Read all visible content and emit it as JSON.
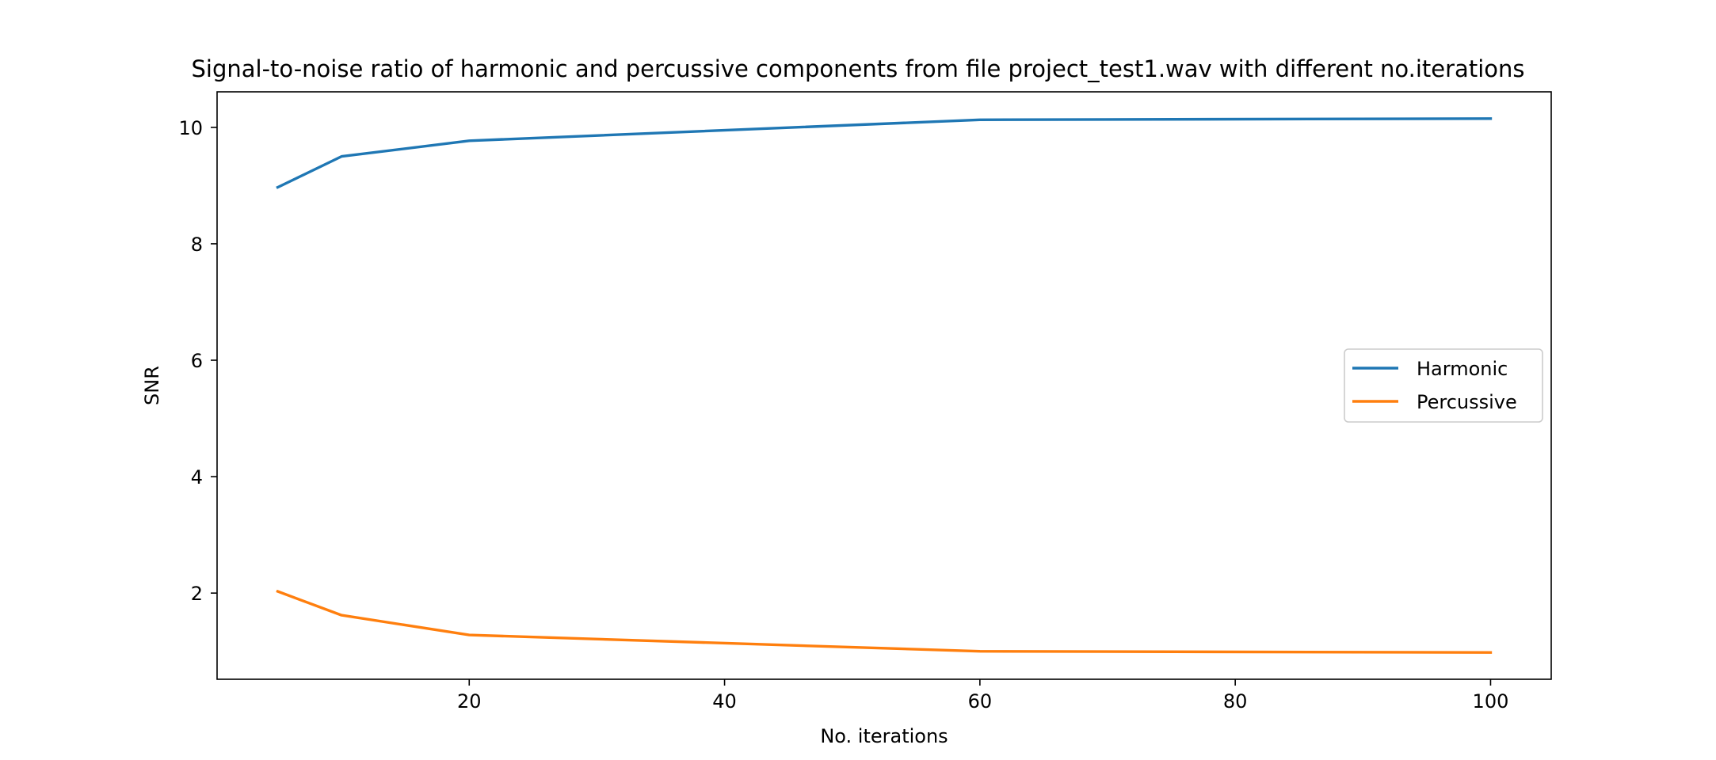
{
  "chart_data": {
    "type": "line",
    "title": "Signal-to-noise ratio of harmonic and percussive components from file project_test1.wav with different no.iterations",
    "xlabel": "No. iterations",
    "ylabel": "SNR",
    "x": [
      5,
      10,
      20,
      60,
      100
    ],
    "series": [
      {
        "name": "Harmonic",
        "color": "#1f77b4",
        "values": [
          8.97,
          9.5,
          9.77,
          10.13,
          10.15
        ]
      },
      {
        "name": "Percussive",
        "color": "#ff7f0e",
        "values": [
          2.03,
          1.62,
          1.28,
          1.0,
          0.98
        ]
      }
    ],
    "xlim": [
      0.25,
      104.75
    ],
    "ylim": [
      0.52,
      10.61
    ],
    "xticks": [
      20,
      40,
      60,
      80,
      100
    ],
    "yticks": [
      2,
      4,
      6,
      8,
      10
    ],
    "grid": false,
    "legend_position": "center-right"
  }
}
